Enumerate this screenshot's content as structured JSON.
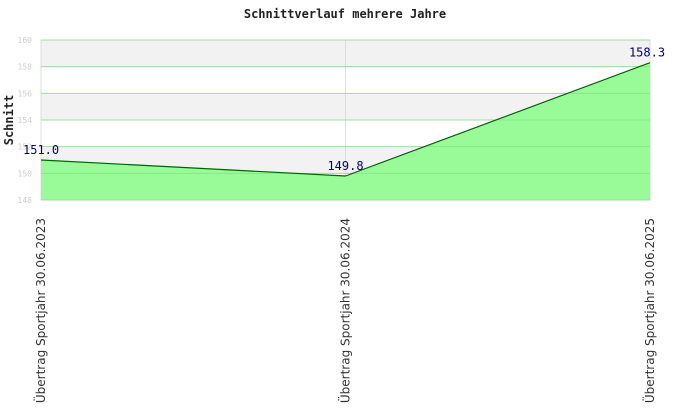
{
  "chart_data": {
    "type": "area",
    "title": "Schnittverlauf mehrere Jahre",
    "xlabel": "",
    "ylabel": "Schnitt",
    "categories": [
      "Übertrag Sportjahr 30.06.2023",
      "Übertrag Sportjahr 30.06.2024",
      "Übertrag Sportjahr 30.06.2025"
    ],
    "series": [
      {
        "values": [
          151.0,
          149.8,
          158.3
        ],
        "labels": [
          "151.0",
          "149.8",
          "158.3"
        ]
      }
    ],
    "yticks": [
      "148",
      "150",
      "152",
      "154",
      "156",
      "158",
      "160"
    ],
    "ylim": [
      148,
      160
    ],
    "grid": true,
    "banded_background": true,
    "colors": {
      "fill": "#98fb98",
      "line": "#006400",
      "band": "#f2f2f2",
      "grid": "#dddddd",
      "data_label": "#000080",
      "tick_label": "#cccccc"
    }
  }
}
